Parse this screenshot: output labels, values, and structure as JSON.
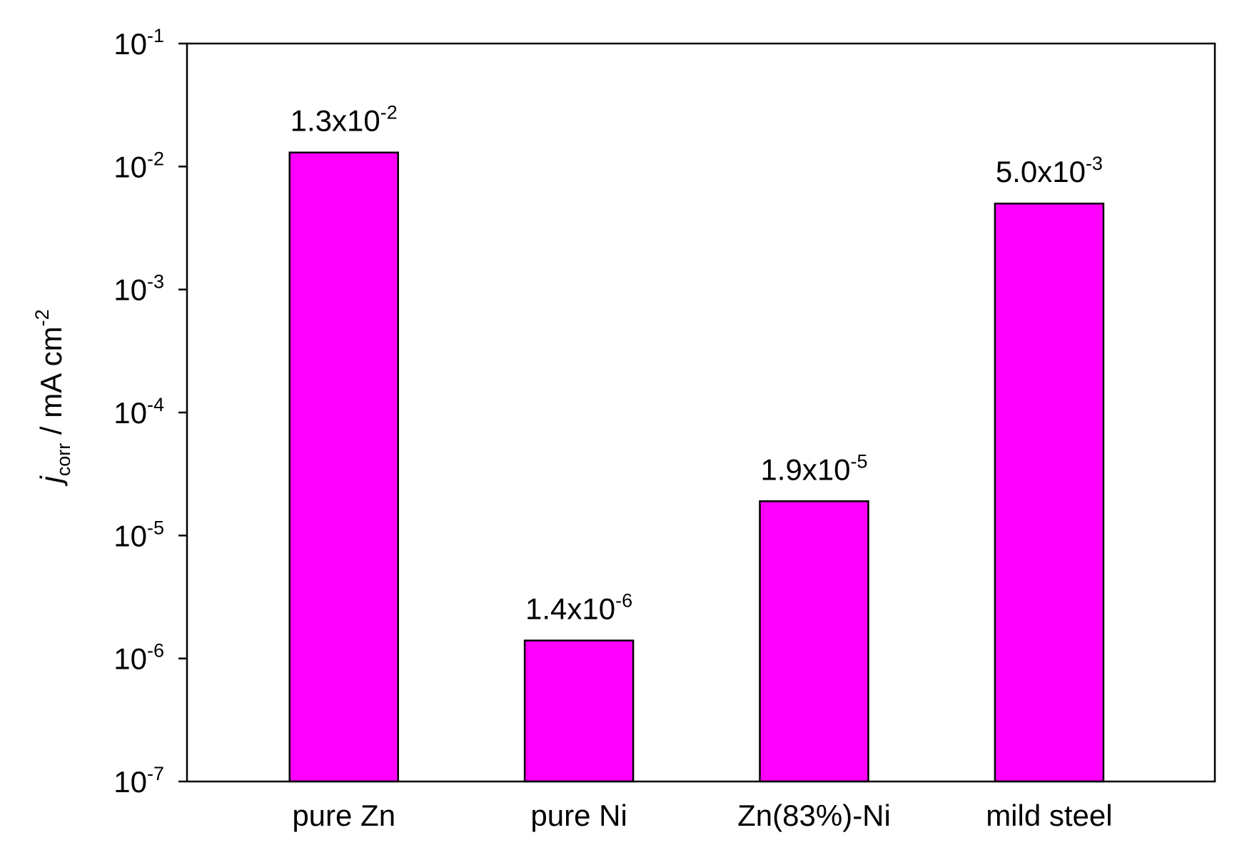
{
  "chart_data": {
    "type": "bar",
    "title": "",
    "xlabel": "",
    "ylabel": {
      "symbol": "j",
      "subscript": "corr",
      "unit": " / mA cm",
      "unit_exponent": "-2"
    },
    "yscale": "log",
    "ylim": [
      1e-07,
      0.1
    ],
    "y_ticks": [
      {
        "base": "10",
        "exp": "-1",
        "value": 0.1
      },
      {
        "base": "10",
        "exp": "-2",
        "value": 0.01
      },
      {
        "base": "10",
        "exp": "-3",
        "value": 0.001
      },
      {
        "base": "10",
        "exp": "-4",
        "value": 0.0001
      },
      {
        "base": "10",
        "exp": "-5",
        "value": 1e-05
      },
      {
        "base": "10",
        "exp": "-6",
        "value": 1e-06
      },
      {
        "base": "10",
        "exp": "-7",
        "value": 1e-07
      }
    ],
    "categories": [
      "pure Zn",
      "pure Ni",
      "Zn(83%)-Ni",
      "mild steel"
    ],
    "values": [
      0.013,
      1.4e-06,
      1.9e-05,
      0.005
    ],
    "data_labels": [
      {
        "mantissa": "1.3x10",
        "exp": "-2"
      },
      {
        "mantissa": "1.4x10",
        "exp": "-6"
      },
      {
        "mantissa": "1.9x10",
        "exp": "-5"
      },
      {
        "mantissa": "5.0x10",
        "exp": "-3"
      }
    ],
    "bar_color": "#ff00ff",
    "grid": false,
    "legend": "none"
  }
}
